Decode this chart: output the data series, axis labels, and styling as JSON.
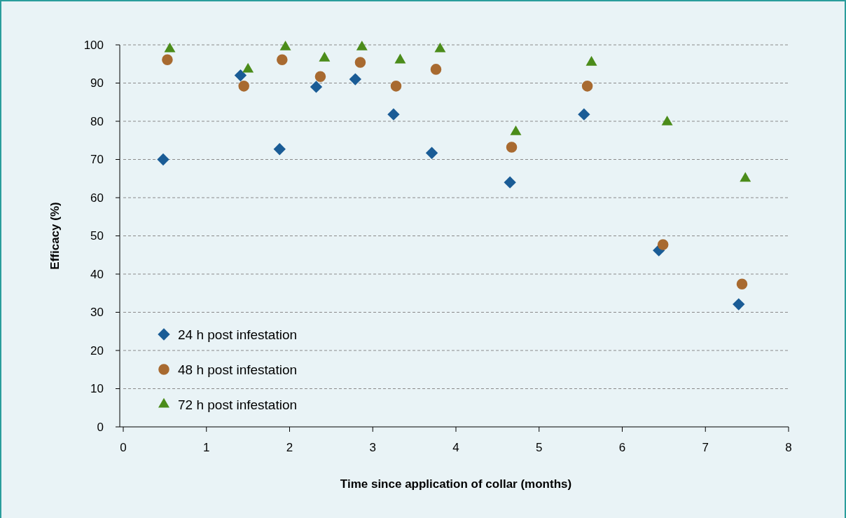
{
  "chart_data": {
    "type": "scatter",
    "xlabel": "Time since application of collar (months)",
    "ylabel": "Efficacy (%)",
    "xlim": [
      0,
      8
    ],
    "xticks": [
      0,
      1,
      2,
      3,
      4,
      5,
      6,
      7,
      8
    ],
    "ylim": [
      0,
      100
    ],
    "yticks": [
      0,
      10,
      20,
      30,
      40,
      50,
      60,
      70,
      80,
      90,
      100
    ],
    "grid": "y",
    "legend": "bottom left",
    "series": [
      {
        "name": "24 h post infestation",
        "color": "#1a5c96",
        "marker": "diamond",
        "x": [
          0.48,
          1.41,
          1.88,
          2.32,
          2.79,
          3.25,
          3.71,
          4.65,
          5.54,
          6.44,
          7.4
        ],
        "values": [
          70,
          92,
          72.7,
          89,
          91,
          81.8,
          71.7,
          64,
          81.8,
          46.2,
          32.1
        ]
      },
      {
        "name": "48 h post infestation",
        "color": "#a86a30",
        "marker": "circle",
        "x": [
          0.53,
          1.45,
          1.91,
          2.37,
          2.85,
          3.28,
          3.76,
          4.67,
          5.58,
          6.49,
          7.44
        ],
        "values": [
          96.1,
          89.2,
          96.1,
          91.7,
          95.4,
          89.2,
          93.6,
          73.2,
          89.2,
          47.7,
          37.4
        ]
      },
      {
        "name": "72 h post infestation",
        "color": "#4b8c1a",
        "marker": "triangle",
        "x": [
          0.56,
          1.5,
          1.95,
          2.42,
          2.87,
          3.33,
          3.81,
          4.72,
          5.63,
          6.54,
          7.48
        ],
        "values": [
          98.9,
          93.6,
          99.4,
          96.5,
          99.4,
          96,
          98.9,
          77.2,
          95.4,
          79.8,
          65
        ]
      }
    ]
  }
}
